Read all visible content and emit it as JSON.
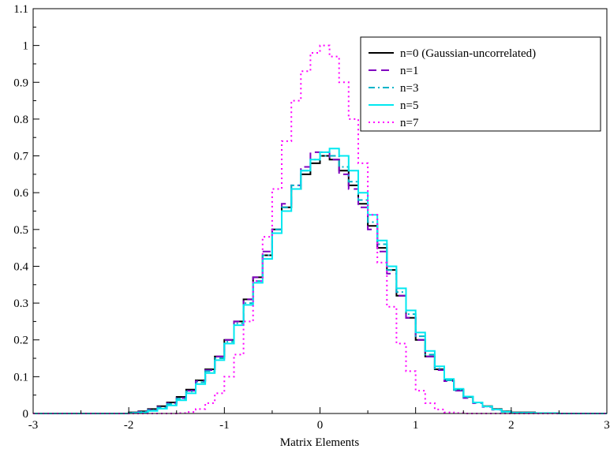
{
  "chart_data": {
    "type": "line",
    "title": "",
    "xlabel": "Matrix Elements",
    "ylabel": "",
    "xlim": [
      -3,
      3
    ],
    "ylim": [
      0,
      1.1
    ],
    "xticks": [
      -3,
      -2,
      -1,
      0,
      1,
      2,
      3
    ],
    "xtick_labels": [
      "-3",
      "-2",
      "-1",
      "0",
      "1",
      "2",
      "3"
    ],
    "yticks": [
      0,
      0.1,
      0.2,
      0.3,
      0.4,
      0.5,
      0.6,
      0.7,
      0.8,
      0.9,
      1,
      1.1
    ],
    "ytick_labels": [
      "0",
      "0.1",
      "0.2",
      "0.3",
      "0.4",
      "0.5",
      "0.6",
      "0.7",
      "0.8",
      "0.9",
      "1",
      "1.1"
    ],
    "grid": false,
    "legend_position": "top-right",
    "x": [
      -3.0,
      -2.75,
      -2.5,
      -2.25,
      -2.0,
      -1.9,
      -1.8,
      -1.7,
      -1.6,
      -1.5,
      -1.4,
      -1.3,
      -1.2,
      -1.1,
      -1.0,
      -0.9,
      -0.8,
      -0.7,
      -0.6,
      -0.5,
      -0.4,
      -0.3,
      -0.2,
      -0.1,
      0.0,
      0.1,
      0.2,
      0.3,
      0.4,
      0.5,
      0.6,
      0.7,
      0.8,
      0.9,
      1.0,
      1.1,
      1.2,
      1.3,
      1.4,
      1.5,
      1.6,
      1.7,
      1.8,
      1.9,
      2.0,
      2.25,
      2.5,
      2.75,
      3.0
    ],
    "series": [
      {
        "name": "n=0 (Gaussian-uncorrelated)",
        "color": "#000000",
        "dash": "solid",
        "values": [
          0,
          0,
          0,
          0,
          0.003,
          0.006,
          0.012,
          0.02,
          0.03,
          0.045,
          0.065,
          0.09,
          0.12,
          0.155,
          0.2,
          0.25,
          0.31,
          0.37,
          0.43,
          0.5,
          0.56,
          0.61,
          0.65,
          0.68,
          0.7,
          0.69,
          0.66,
          0.62,
          0.57,
          0.51,
          0.45,
          0.39,
          0.32,
          0.26,
          0.2,
          0.155,
          0.12,
          0.09,
          0.065,
          0.045,
          0.03,
          0.02,
          0.012,
          0.006,
          0.003,
          0.001,
          0,
          0,
          0
        ]
      },
      {
        "name": "n=1",
        "color": "#8000c0",
        "dash": "dashed",
        "values": [
          0,
          0,
          0,
          0,
          0.002,
          0.005,
          0.01,
          0.018,
          0.028,
          0.042,
          0.062,
          0.088,
          0.118,
          0.155,
          0.2,
          0.25,
          0.31,
          0.37,
          0.44,
          0.5,
          0.57,
          0.62,
          0.67,
          0.71,
          0.71,
          0.69,
          0.65,
          0.61,
          0.56,
          0.5,
          0.44,
          0.38,
          0.32,
          0.26,
          0.2,
          0.155,
          0.118,
          0.088,
          0.062,
          0.042,
          0.028,
          0.018,
          0.01,
          0.005,
          0.002,
          0.001,
          0,
          0,
          0
        ]
      },
      {
        "name": "n=3",
        "color": "#00b4c8",
        "dash": "dashdot",
        "values": [
          0,
          0,
          0,
          0,
          0.002,
          0.004,
          0.009,
          0.016,
          0.026,
          0.04,
          0.06,
          0.085,
          0.115,
          0.15,
          0.195,
          0.245,
          0.3,
          0.36,
          0.43,
          0.5,
          0.56,
          0.62,
          0.66,
          0.69,
          0.7,
          0.7,
          0.67,
          0.63,
          0.58,
          0.52,
          0.46,
          0.39,
          0.33,
          0.27,
          0.21,
          0.16,
          0.122,
          0.09,
          0.064,
          0.044,
          0.029,
          0.019,
          0.011,
          0.005,
          0.002,
          0.001,
          0,
          0,
          0
        ]
      },
      {
        "name": "n=5",
        "color": "#00e8f0",
        "dash": "solid",
        "values": [
          0,
          0,
          0,
          0,
          0.001,
          0.003,
          0.007,
          0.013,
          0.022,
          0.036,
          0.055,
          0.08,
          0.11,
          0.145,
          0.19,
          0.24,
          0.295,
          0.355,
          0.42,
          0.49,
          0.55,
          0.61,
          0.66,
          0.69,
          0.71,
          0.72,
          0.7,
          0.66,
          0.6,
          0.54,
          0.47,
          0.4,
          0.34,
          0.28,
          0.22,
          0.17,
          0.128,
          0.094,
          0.067,
          0.046,
          0.03,
          0.019,
          0.011,
          0.005,
          0.002,
          0.001,
          0,
          0,
          0
        ]
      },
      {
        "name": "n=7",
        "color": "#ff00ff",
        "dash": "dotted",
        "values": [
          0,
          0,
          0,
          0,
          0,
          0,
          0,
          0,
          0,
          0.001,
          0.004,
          0.012,
          0.028,
          0.055,
          0.1,
          0.16,
          0.25,
          0.36,
          0.48,
          0.61,
          0.74,
          0.85,
          0.93,
          0.98,
          1.0,
          0.97,
          0.9,
          0.8,
          0.68,
          0.54,
          0.41,
          0.29,
          0.19,
          0.115,
          0.062,
          0.028,
          0.011,
          0.003,
          0.001,
          0,
          0,
          0,
          0,
          0,
          0,
          0,
          0,
          0,
          0
        ]
      }
    ]
  }
}
